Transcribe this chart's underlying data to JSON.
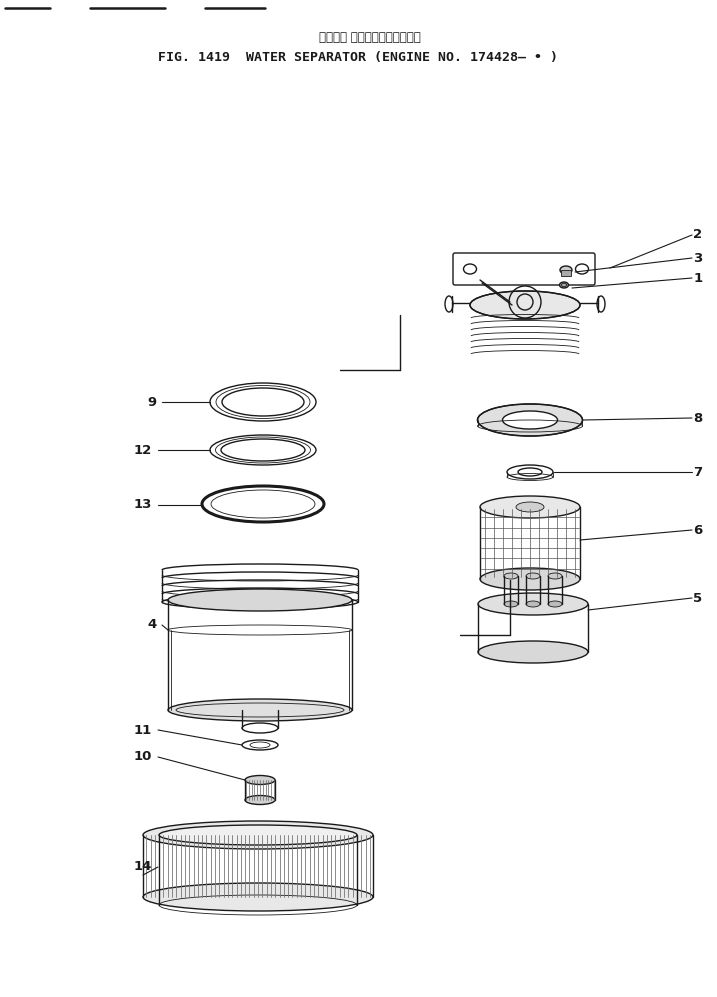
{
  "title_jp": "ウォータ セパレータ　適用号簿",
  "title_en": "FIG. 1419  WATER SEPARATOR (ENGINE NO. 174428— • )",
  "bg_color": "#ffffff",
  "line_color": "#1a1a1a",
  "label_color": "#1a1a1a",
  "fig_width": 7.17,
  "fig_height": 9.97
}
